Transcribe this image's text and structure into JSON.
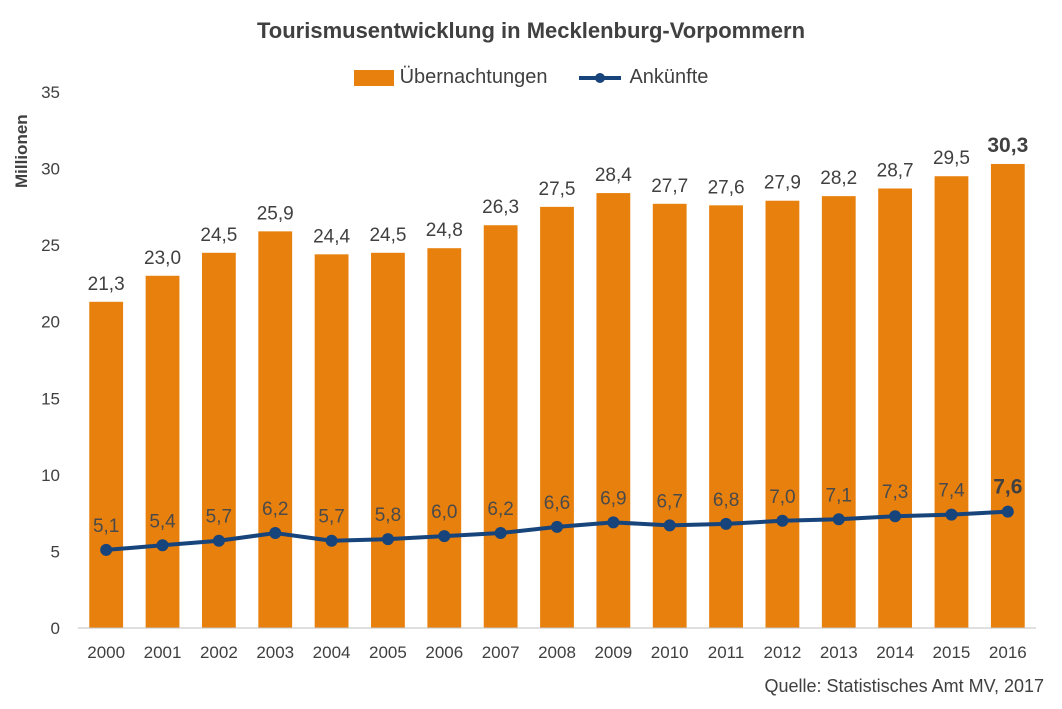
{
  "chart_data": {
    "type": "bar",
    "title": "Tourismusentwicklung in Mecklenburg-Vorpommern",
    "ylabel": "Millionen",
    "ylim": [
      0,
      35
    ],
    "yticks": [
      0,
      5,
      10,
      15,
      20,
      25,
      30,
      35
    ],
    "categories": [
      "2000",
      "2001",
      "2002",
      "2003",
      "2004",
      "2005",
      "2006",
      "2007",
      "2008",
      "2009",
      "2010",
      "2011",
      "2012",
      "2013",
      "2014",
      "2015",
      "2016"
    ],
    "series": [
      {
        "name": "Übernachtungen",
        "type": "bar",
        "color": "#E8800E",
        "values": [
          21.3,
          23.0,
          24.5,
          25.9,
          24.4,
          24.5,
          24.8,
          26.3,
          27.5,
          28.4,
          27.7,
          27.6,
          27.9,
          28.2,
          28.7,
          29.5,
          30.3
        ],
        "labels": [
          "21,3",
          "23,0",
          "24,5",
          "25,9",
          "24,4",
          "24,5",
          "24,8",
          "26,3",
          "27,5",
          "28,4",
          "27,7",
          "27,6",
          "27,9",
          "28,2",
          "28,7",
          "29,5",
          "30,3"
        ]
      },
      {
        "name": "Ankünfte",
        "type": "line",
        "color": "#17447A",
        "values": [
          5.1,
          5.4,
          5.7,
          6.2,
          5.7,
          5.8,
          6.0,
          6.2,
          6.6,
          6.9,
          6.7,
          6.8,
          7.0,
          7.1,
          7.3,
          7.4,
          7.6
        ],
        "labels": [
          "5,1",
          "5,4",
          "5,7",
          "6,2",
          "5,7",
          "5,8",
          "6,0",
          "6,2",
          "6,6",
          "6,9",
          "6,7",
          "6,8",
          "7,0",
          "7,1",
          "7,3",
          "7,4",
          "7,6"
        ]
      }
    ],
    "highlight_last_label_bold": true,
    "grid": false,
    "legend_position": "top-center",
    "source": "Quelle: Statistisches Amt MV, 2017"
  }
}
